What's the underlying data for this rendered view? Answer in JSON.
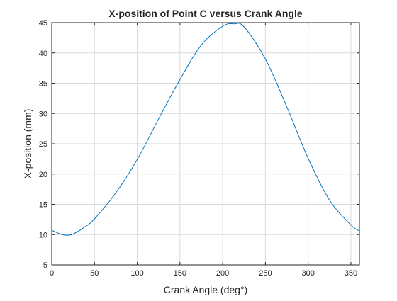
{
  "chart_data": {
    "type": "line",
    "title": "X-position of Point C versus Crank Angle",
    "xlabel": "Crank Angle (deg°)",
    "ylabel": "X-position (mm)",
    "xlim": [
      0,
      360
    ],
    "ylim": [
      5,
      45
    ],
    "xticks": [
      0,
      50,
      100,
      150,
      200,
      250,
      300,
      350
    ],
    "yticks": [
      5,
      10,
      15,
      20,
      25,
      30,
      35,
      40,
      45
    ],
    "grid": true,
    "legend": "none",
    "series": [
      {
        "color": "#0072bd",
        "x": [
          0,
          10,
          17,
          25,
          40,
          50,
          75,
          100,
          125,
          150,
          175,
          200,
          213,
          225,
          250,
          275,
          300,
          325,
          350,
          360
        ],
        "y": [
          10.7,
          10.1,
          9.9,
          10.1,
          11.4,
          12.6,
          16.9,
          22.4,
          29.1,
          35.6,
          41.3,
          44.4,
          44.8,
          44.3,
          39.0,
          31.1,
          22.6,
          15.7,
          11.6,
          10.6
        ]
      }
    ]
  }
}
